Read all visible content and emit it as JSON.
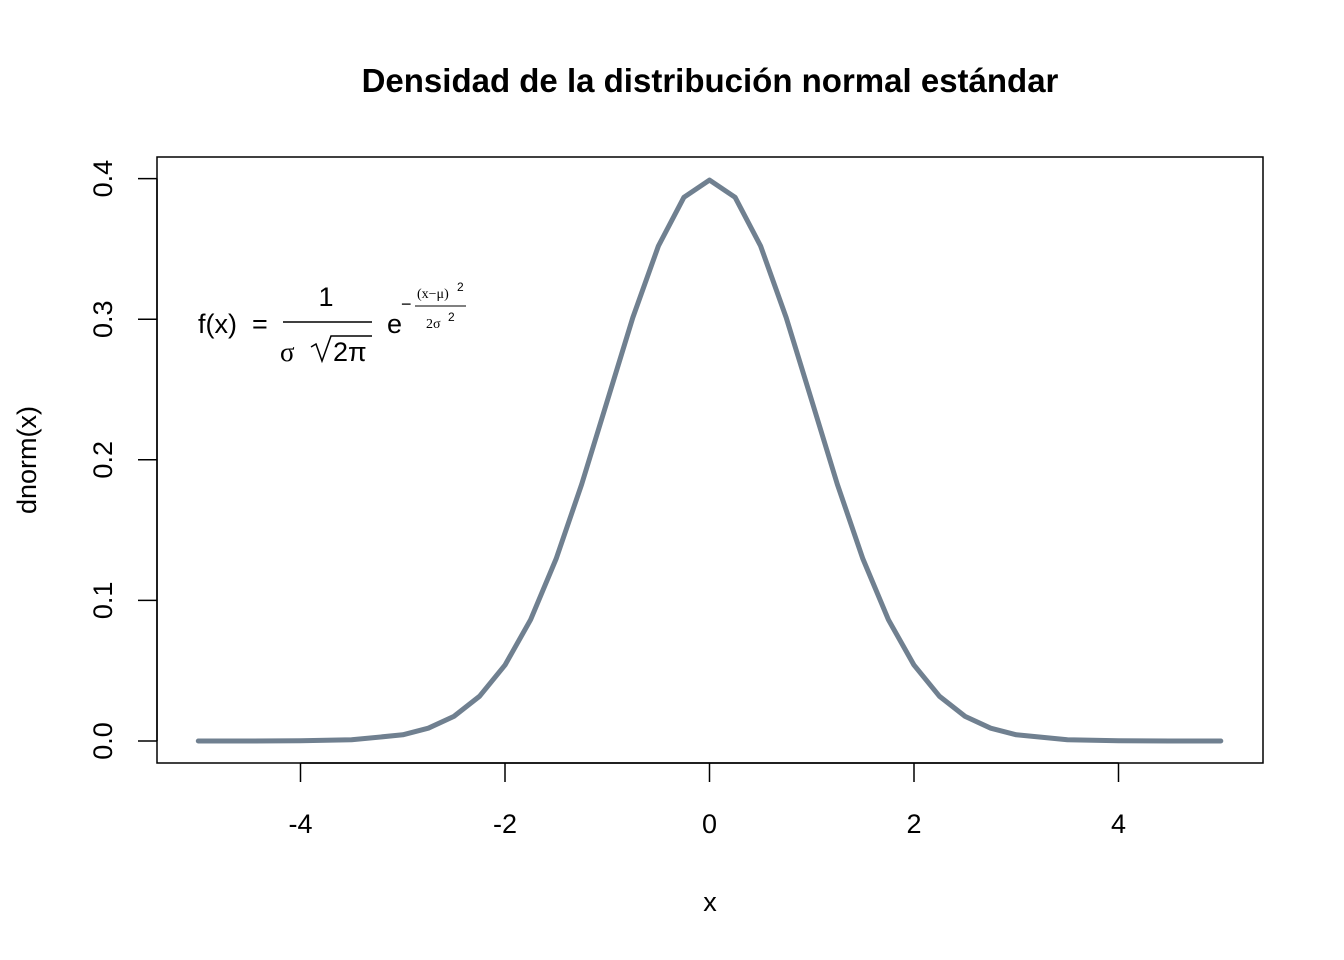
{
  "chart_data": {
    "type": "line",
    "title": "Densidad de la distribución normal estándar",
    "xlabel": "x",
    "ylabel": "dnorm(x)",
    "xlim": [
      -5,
      5
    ],
    "ylim": [
      0,
      0.4
    ],
    "xticks": [
      -4,
      -2,
      0,
      2,
      4
    ],
    "xtick_labels": [
      "-4",
      "-2",
      "0",
      "2",
      "4"
    ],
    "yticks": [
      0.0,
      0.1,
      0.2,
      0.3,
      0.4
    ],
    "ytick_labels": [
      "0.0",
      "0.1",
      "0.2",
      "0.3",
      "0.4"
    ],
    "grid": false,
    "line_color": "#708090",
    "series": [
      {
        "x": [
          -5,
          -4.5,
          -4,
          -3.5,
          -3,
          -2.75,
          -2.5,
          -2.25,
          -2,
          -1.75,
          -1.5,
          -1.25,
          -1,
          -0.75,
          -0.5,
          -0.25,
          0,
          0.25,
          0.5,
          0.75,
          1,
          1.25,
          1.5,
          1.75,
          2,
          2.25,
          2.5,
          2.75,
          3,
          3.5,
          4,
          4.5,
          5
        ],
        "y": [
          1.5e-06,
          1.6e-05,
          0.000134,
          0.000873,
          0.00443,
          0.00909,
          0.01753,
          0.03174,
          0.05399,
          0.08628,
          0.12952,
          0.18265,
          0.24197,
          0.30114,
          0.35207,
          0.38667,
          0.39894,
          0.38667,
          0.35207,
          0.30114,
          0.24197,
          0.18265,
          0.12952,
          0.08628,
          0.05399,
          0.03174,
          0.01753,
          0.00909,
          0.00443,
          0.000873,
          0.000134,
          1.6e-05,
          1.5e-06
        ]
      }
    ],
    "annotation": {
      "lhs": "f(x)",
      "eq": "=",
      "numerator": "1",
      "denominator_sigma": "σ",
      "denominator_root": "2π",
      "base": "e",
      "exp_minus": "−",
      "exp_numerator": "(x−μ)",
      "exp_numerator_power": "2",
      "exp_denominator": "2σ",
      "exp_denominator_power": "2"
    }
  }
}
